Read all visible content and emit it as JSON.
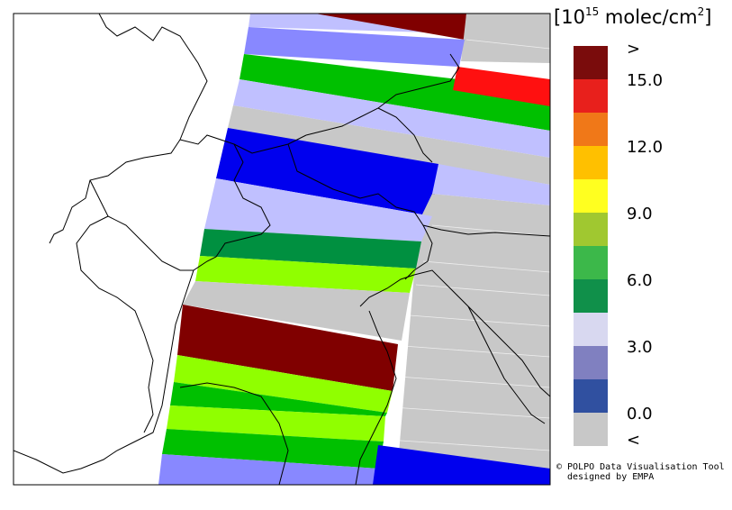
{
  "legend": {
    "title_bracket_open": "[",
    "title_base": "10",
    "title_exp": "15",
    "title_unit": " molec/cm",
    "title_sq": "2",
    "title_bracket_close": "]",
    "ticks": [
      ">",
      "15.0",
      "12.0",
      "9.0",
      "6.0",
      "3.0",
      "0.0",
      "<"
    ],
    "colors_top_to_bottom": [
      "#7a0c0c",
      "#e8201c",
      "#f07818",
      "#ffc000",
      "#ffff20",
      "#a0c830",
      "#3cb84a",
      "#10904a",
      "#d8d8f0",
      "#8080c0",
      "#3050a0",
      "#c8c8c8"
    ]
  },
  "credits": {
    "line1": "© POLPO Data Visualisation Tool",
    "line2": "designed by EMPA"
  },
  "palette": {
    "dark_red": "#800000",
    "red": "#ff1010",
    "lavender": "#c0c0ff",
    "periwinkle": "#8888ff",
    "green": "#00c000",
    "dark_green": "#009040",
    "lime": "#90ff00",
    "blue": "#0000ee",
    "gray": "#c8c8c8"
  }
}
